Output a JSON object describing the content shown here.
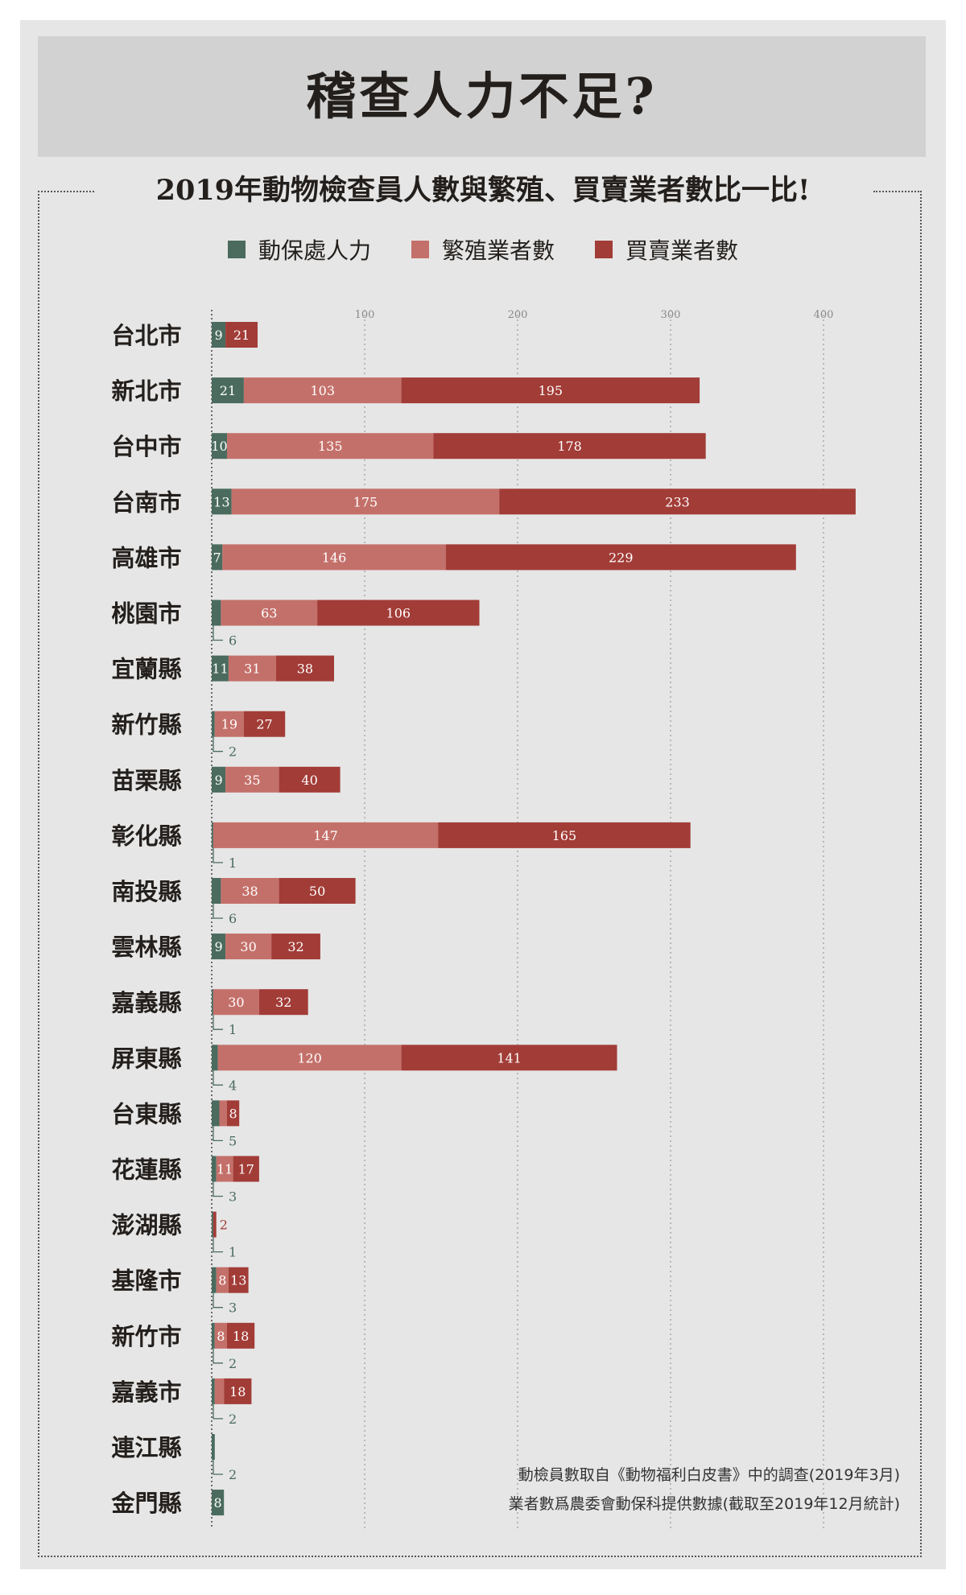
{
  "title": "稽查人力不足?",
  "subtitle": "2019年動物檢查員人數與繁殖、買賣業者數比一比!",
  "colors": {
    "staff": "#4a6b5e",
    "breeder": "#c4706a",
    "seller": "#a23c37",
    "gridline": "#9a9a9a"
  },
  "chart_data": {
    "type": "bar",
    "orientation": "horizontal",
    "stacked": true,
    "categories": [
      "台北市",
      "新北市",
      "台中市",
      "台南市",
      "高雄市",
      "桃園市",
      "宜蘭縣",
      "新竹縣",
      "苗栗縣",
      "彰化縣",
      "南投縣",
      "雲林縣",
      "嘉義縣",
      "屏東縣",
      "台東縣",
      "花蓮縣",
      "澎湖縣",
      "基隆市",
      "新竹市",
      "嘉義市",
      "連江縣",
      "金門縣"
    ],
    "series": [
      {
        "name": "動保處人力",
        "values": [
          9,
          21,
          10,
          13,
          7,
          6,
          11,
          2,
          9,
          1,
          6,
          9,
          1,
          4,
          5,
          3,
          1,
          3,
          2,
          2,
          2,
          8
        ]
      },
      {
        "name": "繁殖業者數",
        "values": [
          0,
          103,
          135,
          175,
          146,
          63,
          31,
          19,
          35,
          147,
          38,
          30,
          30,
          120,
          5,
          11,
          0,
          8,
          8,
          6,
          0,
          0
        ]
      },
      {
        "name": "買賣業者數",
        "values": [
          21,
          195,
          178,
          233,
          229,
          106,
          38,
          27,
          40,
          165,
          50,
          32,
          32,
          141,
          8,
          17,
          2,
          13,
          18,
          18,
          0,
          0
        ]
      }
    ],
    "xticks": [
      100,
      200,
      300,
      400
    ],
    "xlim": [
      0,
      440
    ],
    "grid": true,
    "legend_position": "top"
  },
  "notes": [
    "動檢員數取自《動物福利白皮書》中的調查(2019年3月)",
    "業者數爲農委會動保科提供數據(截取至2019年12月統計)"
  ]
}
